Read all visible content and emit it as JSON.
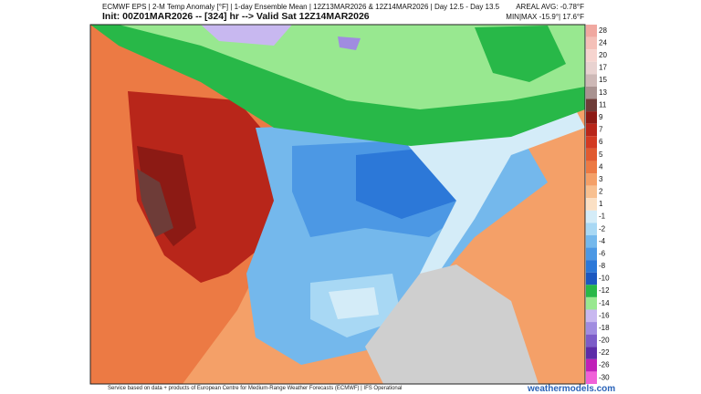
{
  "header": {
    "line1": "ECMWF EPS | 2-M Temp Anomaly [°F] | 1-day Ensemble Mean | 12Z13MAR2026 & 12Z14MAR2026 | Day 12.5 - Day 13.5",
    "line2": "Init: 00Z01MAR2026 -- [324] hr --> Valid Sat 12Z14MAR2026",
    "areal_avg": "AREAL AVG: -0.78°F",
    "min_max": "MIN|MAX -15.9°| 17.6°F"
  },
  "colorbar": {
    "labels": [
      28,
      24,
      20,
      17,
      15,
      13,
      11,
      9,
      7,
      6,
      5,
      4,
      3,
      2,
      1,
      -1,
      -2,
      -4,
      -6,
      -8,
      -10,
      -12,
      -14,
      -16,
      -18,
      -20,
      -22,
      -26,
      -30
    ],
    "colors": [
      "#f0a8a0",
      "#f4c0b8",
      "#f6d4cf",
      "#e8d2d0",
      "#cdb8b6",
      "#a89290",
      "#6e3c38",
      "#8c1a14",
      "#b8261a",
      "#d23a22",
      "#e05a30",
      "#ec7a44",
      "#f4a068",
      "#f8c090",
      "#fbe0c4",
      "#d4ecf8",
      "#a8d8f4",
      "#74b8ec",
      "#4c98e4",
      "#2c78d8",
      "#1c58c0",
      "#28b848",
      "#98e890",
      "#c8b8f0",
      "#a08ce0",
      "#7c5cc8",
      "#5c2ca8",
      "#c020b8",
      "#f060d8"
    ]
  },
  "footer": {
    "text": "Service based on data + products of European Centre for Medium-Range Weather Forecasts (ECMWF) | IFS Operational",
    "brand": "weathermodels.com"
  }
}
